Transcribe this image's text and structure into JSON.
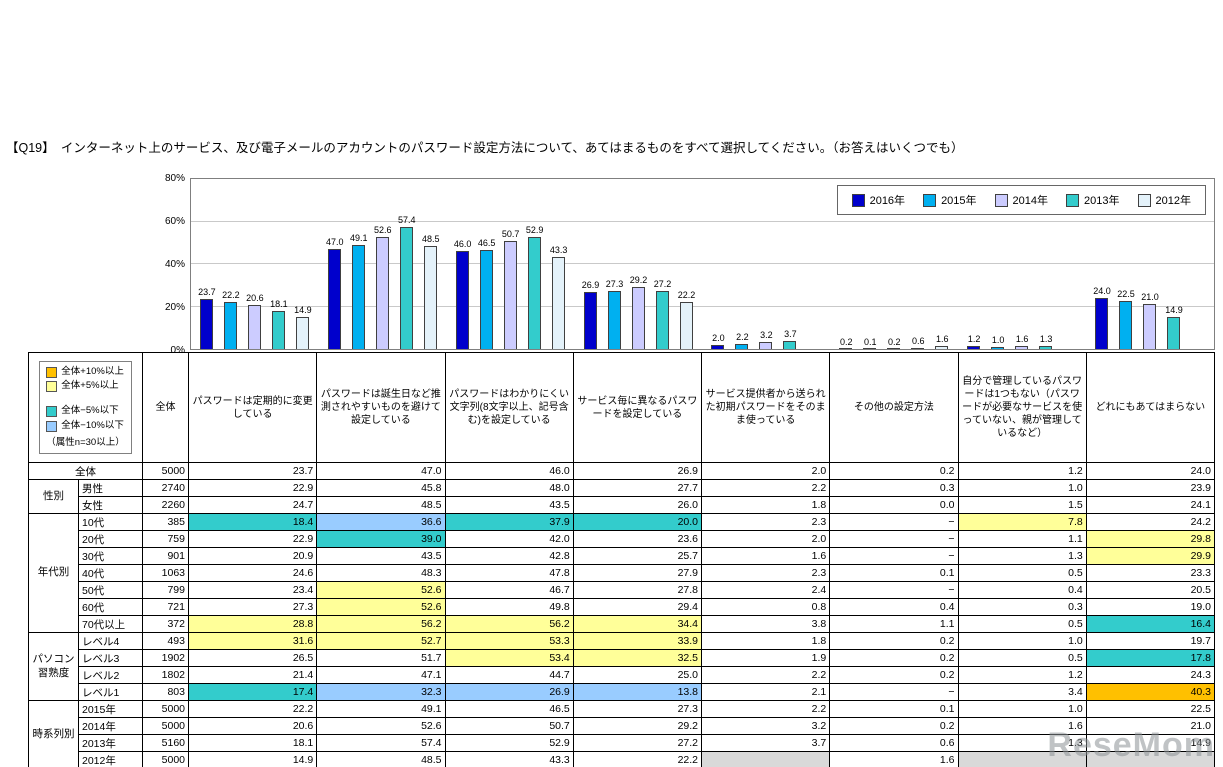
{
  "title": "【Q19】　インターネット上のサービス、及び電子メールのアカウントのパスワード設定方法について、あてはまるものをすべて選択してください。（お答えはいくつでも）",
  "watermark": "ReseMom",
  "chart_data": {
    "type": "bar",
    "title": "",
    "xlabel": "",
    "ylabel": "",
    "ylim": [
      0,
      80
    ],
    "yticks": [
      "0%",
      "20%",
      "40%",
      "60%",
      "80%"
    ],
    "grid": true,
    "legend_position": "top-right",
    "categories": [
      "パスワードは定期的に変更している",
      "パスワードは誕生日など推測されやすいものを避けて設定している",
      "パスワードはわかりにくい文字列(8文字以上、記号含む)を設定している",
      "サービス毎に異なるパスワードを設定している",
      "サービス提供者から送られた初期パスワードをそのまま使っている",
      "その他の設定方法",
      "自分で管理しているパスワードは1つもない（パスワードが必要なサービスを使っていない、親が管理しているなど）",
      "どれにもあてはまらない"
    ],
    "series": [
      {
        "name": "2016年",
        "color": "#0000CC",
        "values": [
          23.7,
          47.0,
          46.0,
          26.9,
          2.0,
          0.2,
          1.2,
          24.0
        ]
      },
      {
        "name": "2015年",
        "color": "#00B0F0",
        "values": [
          22.2,
          49.1,
          46.5,
          27.3,
          2.2,
          0.1,
          1.0,
          22.5
        ]
      },
      {
        "name": "2014年",
        "color": "#CCCCFF",
        "values": [
          20.6,
          52.6,
          50.7,
          29.2,
          3.2,
          0.2,
          1.6,
          21.0
        ]
      },
      {
        "name": "2013年",
        "color": "#33CCCC",
        "values": [
          18.1,
          57.4,
          52.9,
          27.2,
          3.7,
          0.6,
          1.3,
          14.9
        ]
      },
      {
        "name": "2012年",
        "color": "#E4F2FA",
        "values": [
          14.9,
          48.5,
          43.3,
          22.2,
          null,
          1.6,
          null,
          null
        ]
      }
    ]
  },
  "table": {
    "legend": {
      "items": [
        {
          "code": "p10",
          "label": "全体+10%以上"
        },
        {
          "code": "p5",
          "label": "全体+5%以上"
        },
        {
          "code": "m5",
          "label": "全体−5%以下"
        },
        {
          "code": "m10",
          "label": "全体−10%以下"
        }
      ],
      "note": "（属性n=30以上）"
    },
    "n_header": "全体",
    "highlight_colors": {
      "p10": "#FFC000",
      "p5": "#FFFF99",
      "m5": "#33CCCC",
      "m10": "#99CCFF",
      "gray": "#D9D9D9"
    },
    "columns": [
      "パスワードは定期的に変更している",
      "パスワードは誕生日など推測されやすいものを避けて設定している",
      "パスワードはわかりにくい文字列(8文字以上、記号含む)を設定している",
      "サービス毎に異なるパスワードを設定している",
      "サービス提供者から送られた初期パスワードをそのまま使っている",
      "その他の設定方法",
      "自分で管理しているパスワードは1つもない（パスワードが必要なサービスを使っていない、親が管理しているなど）",
      "どれにもあてはまらない"
    ],
    "row_groups": [
      {
        "label": "",
        "rows": [
          {
            "label": "全体",
            "n": "5000",
            "values": [
              "23.7",
              "47.0",
              "46.0",
              "26.9",
              "2.0",
              "0.2",
              "1.2",
              "24.0"
            ],
            "hl": [
              null,
              null,
              null,
              null,
              null,
              null,
              null,
              null
            ]
          }
        ]
      },
      {
        "label": "性別",
        "rows": [
          {
            "label": "男性",
            "n": "2740",
            "values": [
              "22.9",
              "45.8",
              "48.0",
              "27.7",
              "2.2",
              "0.3",
              "1.0",
              "23.9"
            ],
            "hl": [
              null,
              null,
              null,
              null,
              null,
              null,
              null,
              null
            ]
          },
          {
            "label": "女性",
            "n": "2260",
            "values": [
              "24.7",
              "48.5",
              "43.5",
              "26.0",
              "1.8",
              "0.0",
              "1.5",
              "24.1"
            ],
            "hl": [
              null,
              null,
              null,
              null,
              null,
              null,
              null,
              null
            ]
          }
        ]
      },
      {
        "label": "年代別",
        "rows": [
          {
            "label": "10代",
            "n": "385",
            "values": [
              "18.4",
              "36.6",
              "37.9",
              "20.0",
              "2.3",
              "−",
              "7.8",
              "24.2"
            ],
            "hl": [
              "m5",
              "m10",
              "m5",
              "m5",
              null,
              null,
              "p5",
              null
            ]
          },
          {
            "label": "20代",
            "n": "759",
            "values": [
              "22.9",
              "39.0",
              "42.0",
              "23.6",
              "2.0",
              "−",
              "1.1",
              "29.8"
            ],
            "hl": [
              null,
              "m5",
              null,
              null,
              null,
              null,
              null,
              "p5"
            ]
          },
          {
            "label": "30代",
            "n": "901",
            "values": [
              "20.9",
              "43.5",
              "42.8",
              "25.7",
              "1.6",
              "−",
              "1.3",
              "29.9"
            ],
            "hl": [
              null,
              null,
              null,
              null,
              null,
              null,
              null,
              "p5"
            ]
          },
          {
            "label": "40代",
            "n": "1063",
            "values": [
              "24.6",
              "48.3",
              "47.8",
              "27.9",
              "2.3",
              "0.1",
              "0.5",
              "23.3"
            ],
            "hl": [
              null,
              null,
              null,
              null,
              null,
              null,
              null,
              null
            ]
          },
          {
            "label": "50代",
            "n": "799",
            "values": [
              "23.4",
              "52.6",
              "46.7",
              "27.8",
              "2.4",
              "−",
              "0.4",
              "20.5"
            ],
            "hl": [
              null,
              "p5",
              null,
              null,
              null,
              null,
              null,
              null
            ]
          },
          {
            "label": "60代",
            "n": "721",
            "values": [
              "27.3",
              "52.6",
              "49.8",
              "29.4",
              "0.8",
              "0.4",
              "0.3",
              "19.0"
            ],
            "hl": [
              null,
              "p5",
              null,
              null,
              null,
              null,
              null,
              null
            ]
          },
          {
            "label": "70代以上",
            "n": "372",
            "values": [
              "28.8",
              "56.2",
              "56.2",
              "34.4",
              "3.8",
              "1.1",
              "0.5",
              "16.4"
            ],
            "hl": [
              "p5",
              "p5",
              "p5",
              "p5",
              null,
              null,
              null,
              "m5"
            ]
          }
        ]
      },
      {
        "label": "パソコン習熟度",
        "rows": [
          {
            "label": "レベル4",
            "n": "493",
            "values": [
              "31.6",
              "52.7",
              "53.3",
              "33.9",
              "1.8",
              "0.2",
              "1.0",
              "19.7"
            ],
            "hl": [
              "p5",
              "p5",
              "p5",
              "p5",
              null,
              null,
              null,
              null
            ]
          },
          {
            "label": "レベル3",
            "n": "1902",
            "values": [
              "26.5",
              "51.7",
              "53.4",
              "32.5",
              "1.9",
              "0.2",
              "0.5",
              "17.8"
            ],
            "hl": [
              null,
              null,
              "p5",
              "p5",
              null,
              null,
              null,
              "m5"
            ]
          },
          {
            "label": "レベル2",
            "n": "1802",
            "values": [
              "21.4",
              "47.1",
              "44.7",
              "25.0",
              "2.2",
              "0.2",
              "1.2",
              "24.3"
            ],
            "hl": [
              null,
              null,
              null,
              null,
              null,
              null,
              null,
              null
            ]
          },
          {
            "label": "レベル1",
            "n": "803",
            "values": [
              "17.4",
              "32.3",
              "26.9",
              "13.8",
              "2.1",
              "−",
              "3.4",
              "40.3"
            ],
            "hl": [
              "m5",
              "m10",
              "m10",
              "m10",
              null,
              null,
              null,
              "p10"
            ]
          }
        ]
      },
      {
        "label": "時系列別",
        "rows": [
          {
            "label": "2015年",
            "n": "5000",
            "values": [
              "22.2",
              "49.1",
              "46.5",
              "27.3",
              "2.2",
              "0.1",
              "1.0",
              "22.5"
            ],
            "hl": [
              null,
              null,
              null,
              null,
              null,
              null,
              null,
              null
            ]
          },
          {
            "label": "2014年",
            "n": "5000",
            "values": [
              "20.6",
              "52.6",
              "50.7",
              "29.2",
              "3.2",
              "0.2",
              "1.6",
              "21.0"
            ],
            "hl": [
              null,
              null,
              null,
              null,
              null,
              null,
              null,
              null
            ]
          },
          {
            "label": "2013年",
            "n": "5160",
            "values": [
              "18.1",
              "57.4",
              "52.9",
              "27.2",
              "3.7",
              "0.6",
              "1.3",
              "14.9"
            ],
            "hl": [
              null,
              null,
              null,
              null,
              null,
              null,
              null,
              null
            ]
          },
          {
            "label": "2012年",
            "n": "5000",
            "values": [
              "14.9",
              "48.5",
              "43.3",
              "22.2",
              "",
              "1.6",
              "",
              ""
            ],
            "hl": [
              null,
              null,
              null,
              null,
              "gray",
              null,
              "gray",
              "gray"
            ]
          }
        ]
      }
    ]
  }
}
